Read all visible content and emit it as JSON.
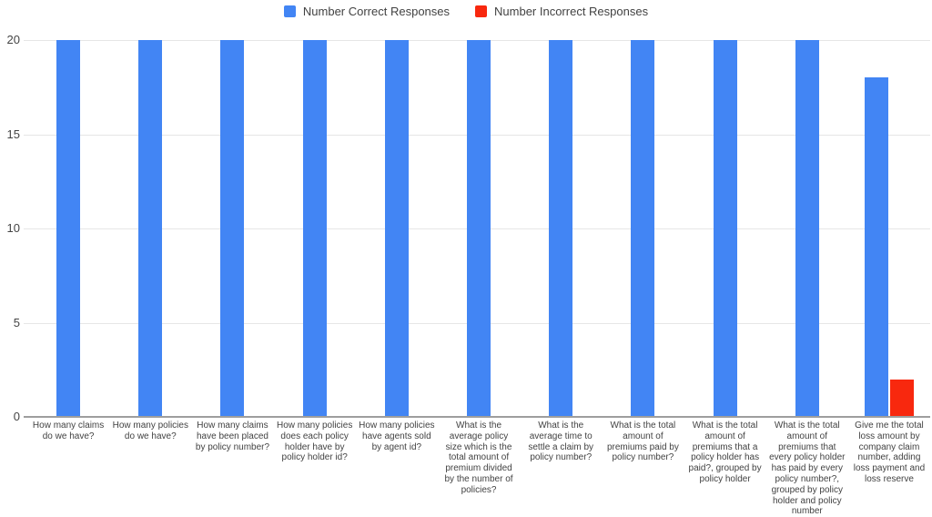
{
  "chart_data": {
    "type": "bar",
    "title": "",
    "xlabel": "",
    "ylabel": "",
    "ylim": [
      0,
      20
    ],
    "yticks": [
      0,
      5,
      10,
      15,
      20
    ],
    "grid": true,
    "legend_position": "top-center",
    "background_color": "#ffffff",
    "categories": [
      "How many claims do we have?",
      "How many policies do we have?",
      "How many claims have been placed by policy number?",
      "How many policies does each policy holder have by policy holder id?",
      "How many policies have agents sold by agent id?",
      "What is the average policy size which is the total amount of premium divided by the number of policies?",
      "What is the average time to settle a claim by policy number?",
      "What is the total amount of premiums paid by policy number?",
      "What is the total amount of premiums that a policy holder has paid?, grouped by policy holder",
      "What is the total amount of premiums that every policy holder has paid by every policy number?, grouped by policy holder and policy number",
      "Give me the total loss amount by company claim number, adding loss payment and loss reserve"
    ],
    "series": [
      {
        "name": "Number Correct Responses",
        "color": "#4285F4",
        "values": [
          20,
          20,
          20,
          20,
          20,
          20,
          20,
          20,
          20,
          20,
          18
        ]
      },
      {
        "name": "Number Incorrect Responses",
        "color": "#F8280E",
        "values": [
          0,
          0,
          0,
          0,
          0,
          0,
          0,
          0,
          0,
          0,
          2
        ]
      }
    ]
  }
}
